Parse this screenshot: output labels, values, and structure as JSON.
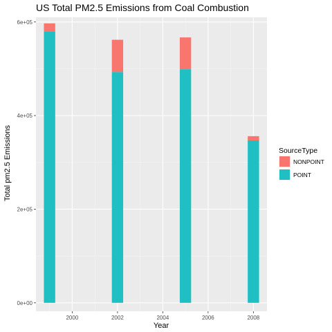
{
  "chart_data": {
    "type": "bar",
    "stacked": true,
    "title": "US Total PM2.5 Emissions from Coal Combustion",
    "xlabel": "Year",
    "ylabel": "Total pm2.5 Emissions",
    "categories": [
      1999,
      2002,
      2005,
      2008
    ],
    "series": [
      {
        "name": "POINT",
        "color": "#1fbfc4",
        "values": [
          579000,
          493000,
          499000,
          347000
        ]
      },
      {
        "name": "NONPOINT",
        "color": "#f8766d",
        "values": [
          18000,
          69000,
          68000,
          9000
        ]
      }
    ],
    "xlim": [
      1998.4,
      2008.6
    ],
    "ylim": [
      -18000,
      610000
    ],
    "x_ticks": [
      {
        "value": 2000,
        "label": "2000"
      },
      {
        "value": 2002,
        "label": "2002"
      },
      {
        "value": 2004,
        "label": "2004"
      },
      {
        "value": 2006,
        "label": "2006"
      },
      {
        "value": 2008,
        "label": "2008"
      }
    ],
    "y_ticks": [
      {
        "value": 0,
        "label": "0e+00"
      },
      {
        "value": 200000,
        "label": "2e+05"
      },
      {
        "value": 400000,
        "label": "4e+05"
      },
      {
        "value": 600000,
        "label": "6e+05"
      }
    ],
    "legend": {
      "title": "SourceType",
      "position": "right",
      "entries": [
        {
          "label": "NONPOINT",
          "color": "#f8766d"
        },
        {
          "label": "POINT",
          "color": "#1fbfc4"
        }
      ]
    },
    "bar_width_years": 0.5,
    "grid": true,
    "panel_color": "#ebebeb"
  }
}
